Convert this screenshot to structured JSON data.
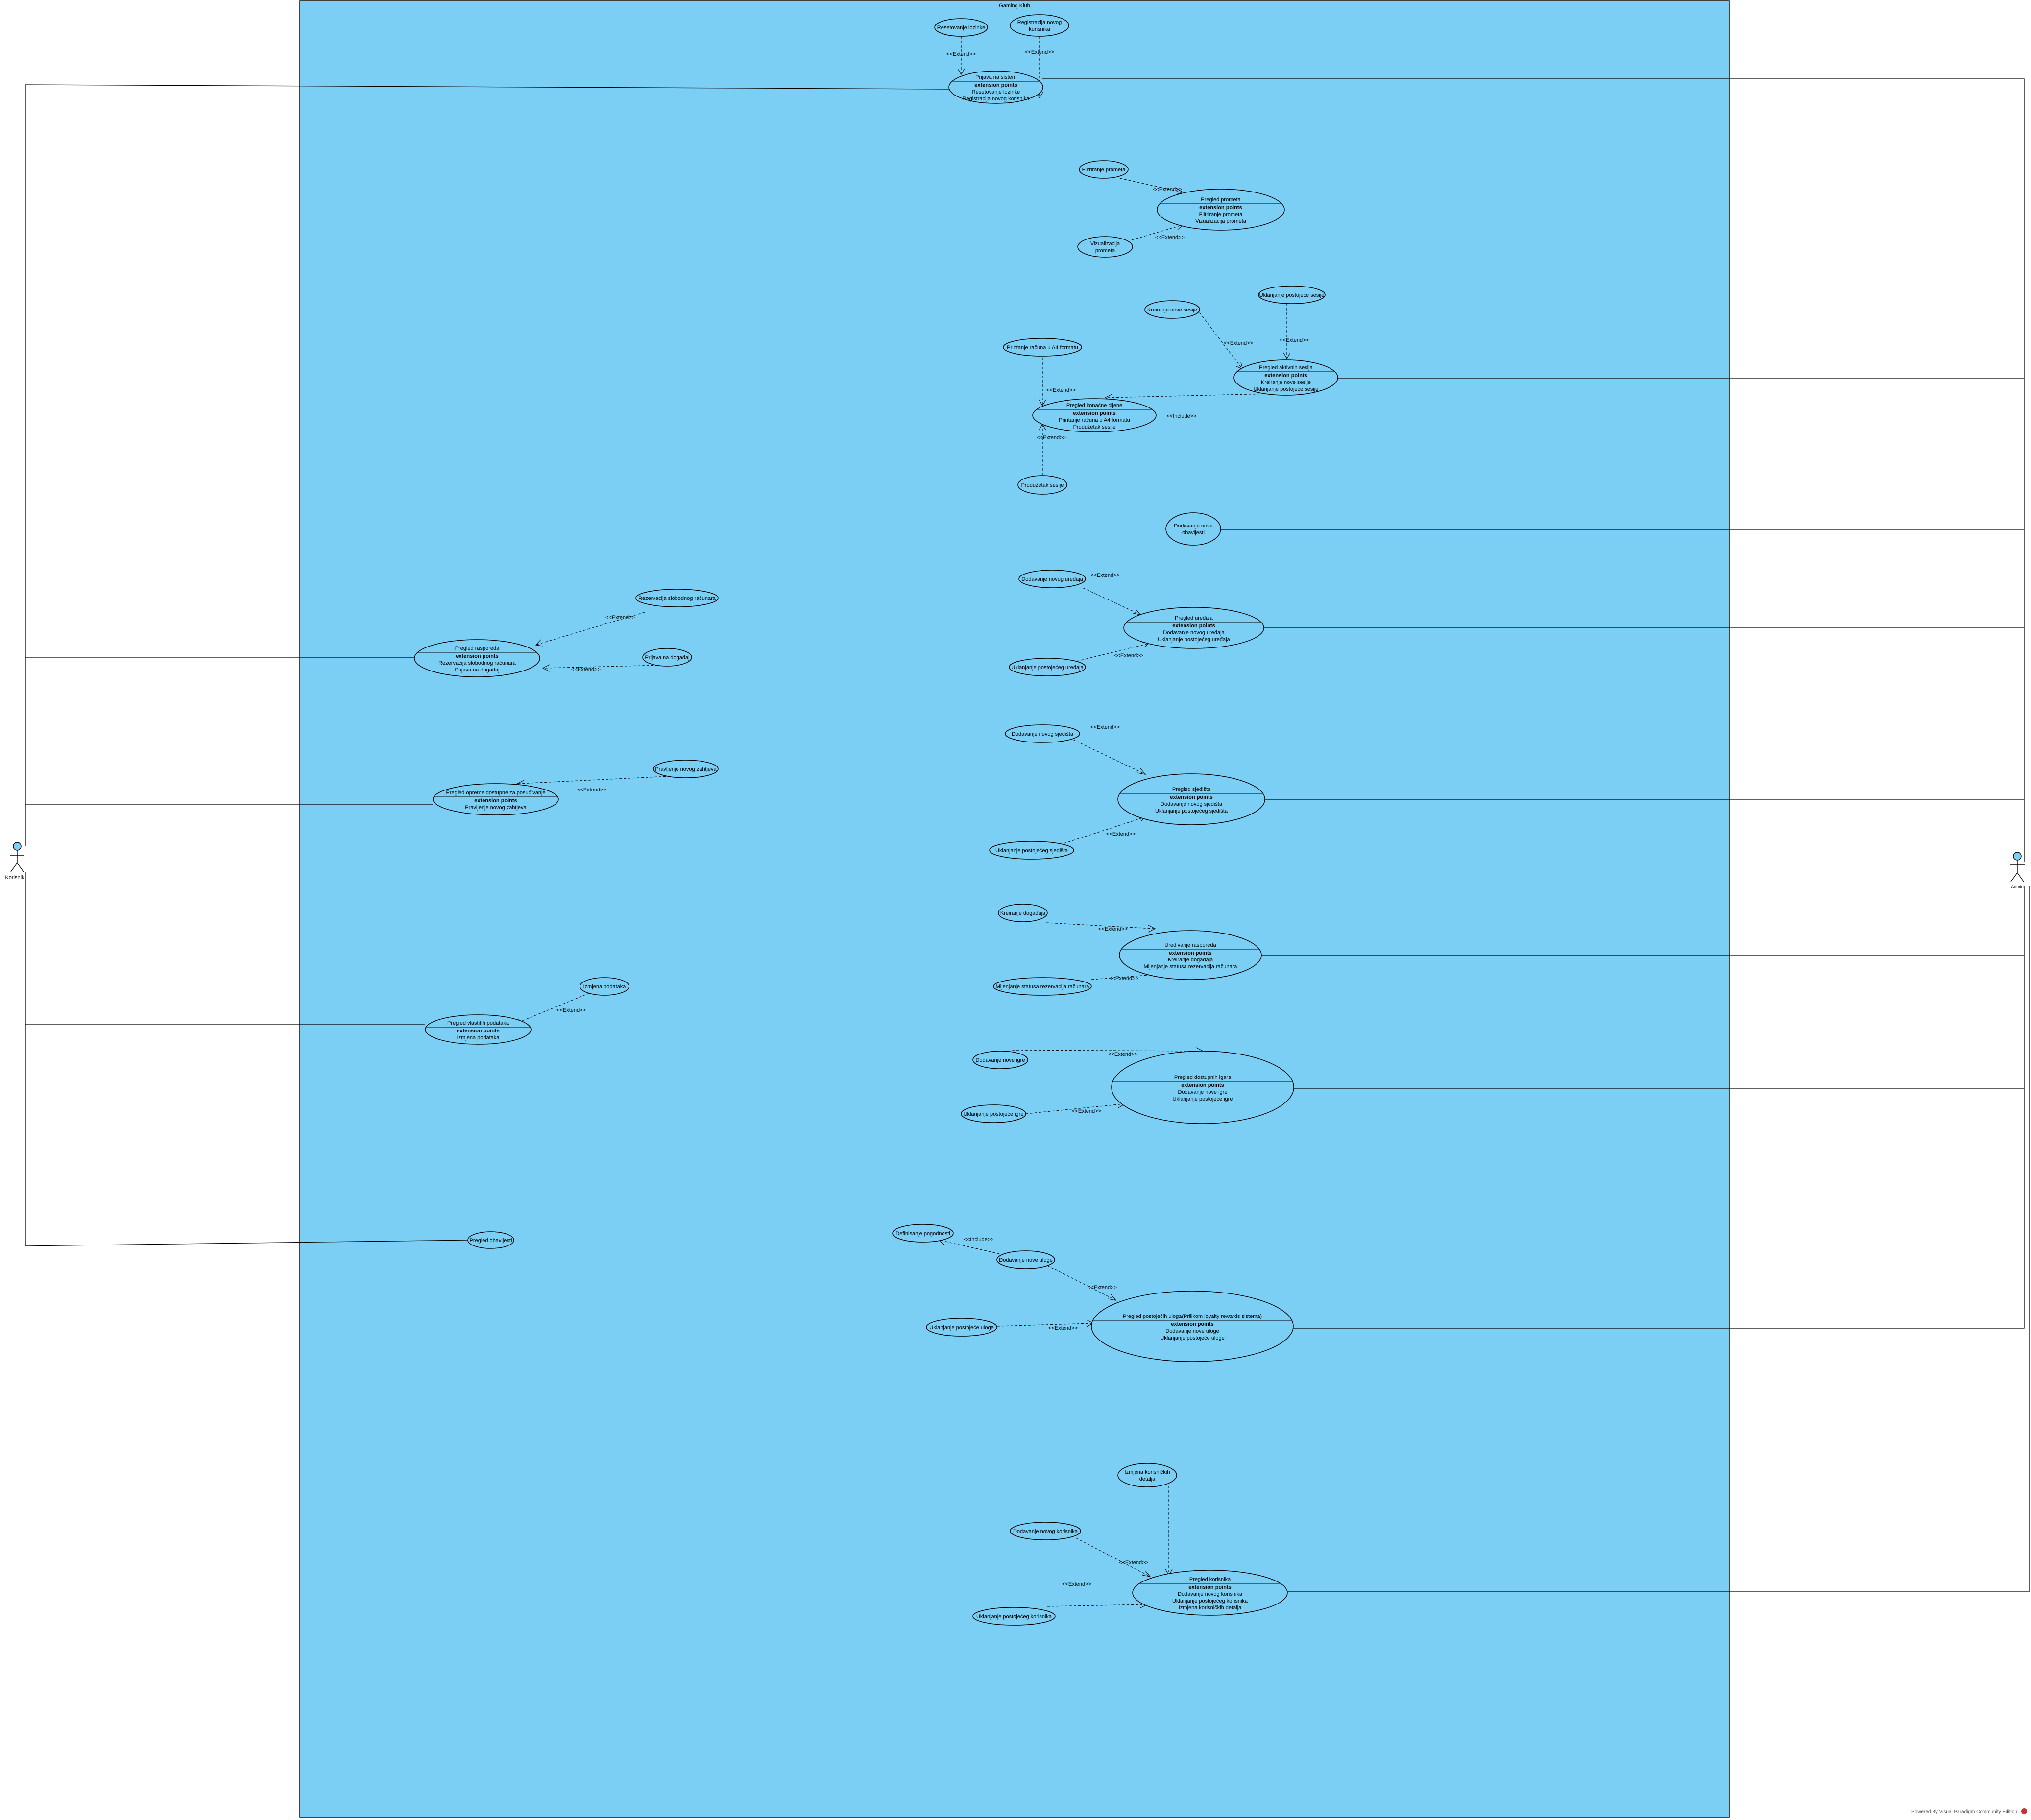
{
  "system": {
    "title": "Gaming Klub"
  },
  "actors": {
    "left": "Korisnik",
    "right": "Admin"
  },
  "ext_heading": "extension points",
  "extend_label": "<<Extend>>",
  "include_label": "<<Include>>",
  "usecases": {
    "prijava": {
      "title": "Prijava na sistem",
      "points": [
        "Resetovanje lozinke",
        "Registracija novog korisnika"
      ]
    },
    "resetovanje": {
      "lines": [
        "Resetovanje lozinke"
      ]
    },
    "registracija": {
      "lines": [
        "Registracija novog",
        "korisnika"
      ]
    },
    "pregled_prometa": {
      "title": "Pregled prometa",
      "points": [
        "Filtriranje prometa",
        "Vizualizacija prometa"
      ]
    },
    "filtriranje": {
      "lines": [
        "Filtriranje prometa"
      ]
    },
    "vizualizacija": {
      "lines": [
        "Vizualizacija",
        "prometa"
      ]
    },
    "kreiranje_sesije": {
      "lines": [
        "Kreiranje nove sesije"
      ]
    },
    "uklanjanje_sesije": {
      "lines": [
        "Uklanjanje postojeće sesije"
      ]
    },
    "aktivne_sesije": {
      "title": "Pregled aktivnih sesija",
      "points": [
        "Kreiranje nove sesije",
        "Uklanjanje postojeće sesije"
      ]
    },
    "printanje": {
      "lines": [
        "Printanje računa u A4 formatu"
      ]
    },
    "konacna_cijena": {
      "title": "Pregled konačne cijene",
      "points": [
        "Printanje računa u A4 formatu",
        "Produžetak sesije"
      ]
    },
    "produzetak": {
      "lines": [
        "Produžetak sesije"
      ]
    },
    "obavijest_nova": {
      "lines": [
        "Dodavanje nove",
        "obavijesti"
      ]
    },
    "novi_uredjaj": {
      "lines": [
        "Dodavanje novog uređaja"
      ]
    },
    "pregled_uredjaja": {
      "title": "Pregled uređaja",
      "points": [
        "Dodavanje novog uređaja",
        "Uklanjanje postojećeg uređaja"
      ]
    },
    "uklanjanje_uredjaja": {
      "lines": [
        "Uklanjanje postojećeg uređaja"
      ]
    },
    "pregled_rasporeda": {
      "title": "Pregled rasporeda",
      "points": [
        "Rezervacija slobodnog računara",
        "Prijava na događaj"
      ]
    },
    "rezervacija": {
      "lines": [
        "Rezervacija slobodnog računara"
      ]
    },
    "prijava_dogadjaj": {
      "lines": [
        "Prijava na događaj"
      ]
    },
    "novo_sjediste": {
      "lines": [
        "Dodavanje novog sjedišta"
      ]
    },
    "pregled_sjedista": {
      "title": "Pregled sjedišta",
      "points": [
        "Dodavanje novog sjedišta",
        "Uklanjanje postojećeg sjedišta"
      ]
    },
    "uklanjanje_sjedista": {
      "lines": [
        "Uklanjanje postojećeg sjedišta"
      ]
    },
    "pregled_opreme": {
      "title": "Pregled opreme dostupne za posuđivanje",
      "points": [
        "Pravljenje novog zahtjeva"
      ]
    },
    "novi_zahtjev": {
      "lines": [
        "Pravljenje novog zahtjeva"
      ]
    },
    "kreiranje_dogadjaja": {
      "lines": [
        "Kreiranje događaja"
      ]
    },
    "uredjivanje_rasporeda": {
      "title": "Uređivanje rasporeda",
      "points": [
        "Kreiranje događaja",
        "Mijenjanje statusa rezervacija računara"
      ]
    },
    "mijenjanje_statusa": {
      "lines": [
        "Mijenjanje statusa rezervacija računara"
      ]
    },
    "izmjena_podataka": {
      "lines": [
        "Izmjena podataka"
      ]
    },
    "licni_podaci": {
      "title": "Pregled vlastitih podataka",
      "points": [
        "Izmjena podataka"
      ]
    },
    "nova_igra": {
      "lines": [
        "Dodavanje nove igre"
      ]
    },
    "dostupne_igre": {
      "title": "Pregled dostupnih igara",
      "points": [
        "Dodavanje nove igre",
        "Uklanjanje postojeće igre"
      ]
    },
    "uklanjanje_igre": {
      "lines": [
        "Uklanjanje postojeće igre"
      ]
    },
    "pregled_obavijesti": {
      "lines": [
        "Pregled obavijesti"
      ]
    },
    "definisanje": {
      "lines": [
        "Definisanje pogodnosti"
      ]
    },
    "nova_uloga": {
      "lines": [
        "Dodavanje nove uloge"
      ]
    },
    "pregled_uloga": {
      "title": "Pregled postojećih uloga(Prilikom loyalty rewards sistema)",
      "points": [
        "Dodavanje nove uloge",
        "Uklanjanje postojeće uloge"
      ]
    },
    "uklanjanje_uloge": {
      "lines": [
        "Uklanjanje postojeće uloge"
      ]
    },
    "izmjena_detalja": {
      "lines": [
        "Izmjena korisničkih",
        "detalja"
      ]
    },
    "novi_korisnik": {
      "lines": [
        "Dodavanje novog korisnika"
      ]
    },
    "pregled_korisnika": {
      "title": "Pregled korisnika",
      "points": [
        "Dodavanje novog korisnika",
        "Uklanjanje postojećeg korisnika",
        "Izmjena korisničkih detalja"
      ]
    },
    "uklanjanje_korisnika": {
      "lines": [
        "Uklanjanje postojećeg korisnika"
      ]
    }
  },
  "watermark": "Powered By Visual Paradigm Community Edition"
}
